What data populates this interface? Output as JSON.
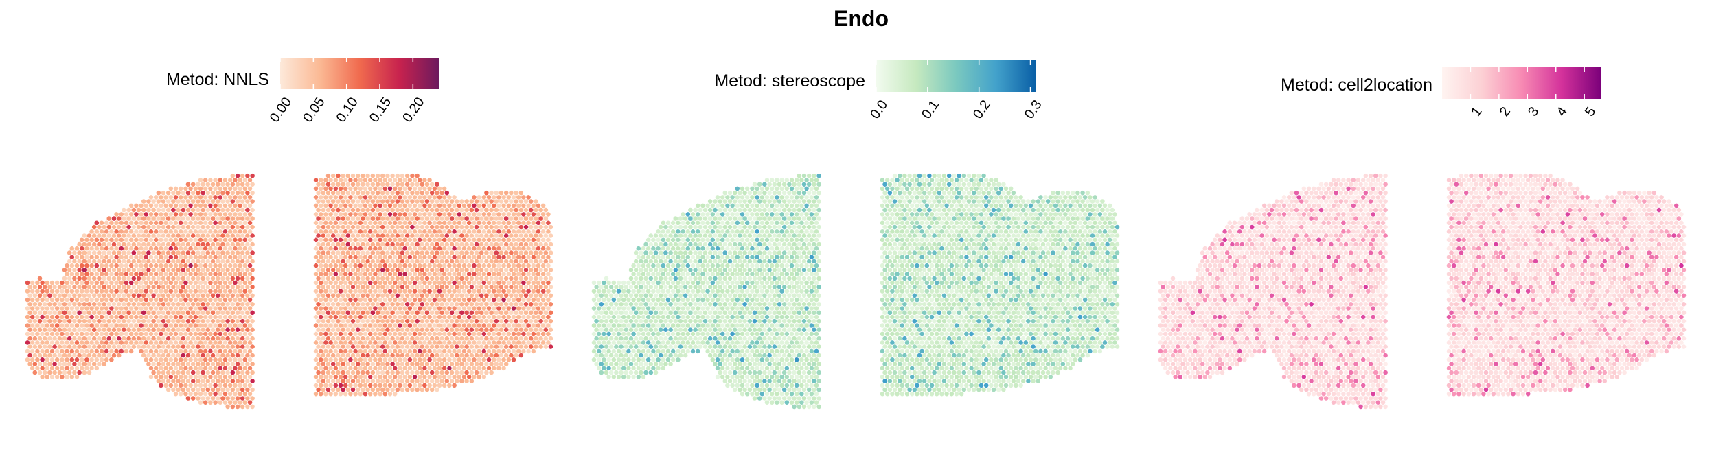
{
  "figure": {
    "title": "Endo"
  },
  "colors": {
    "nnls": [
      "#fde9da",
      "#fbb994",
      "#f06a4e",
      "#c7224e",
      "#6b1a5e"
    ],
    "stereoscope": [
      "#f2fbef",
      "#c6e9bf",
      "#7bc9bf",
      "#43a2cb",
      "#0a5fa6"
    ],
    "cell2location": [
      "#fff4f1",
      "#fcd0d4",
      "#f78ab3",
      "#d4329b",
      "#7a007a"
    ]
  },
  "chart_data": [
    {
      "type": "heatmap",
      "method_label": "Metod: NNLS",
      "colorbar": {
        "min": 0.0,
        "max": 0.24,
        "ticks": [
          0.0,
          0.05,
          0.1,
          0.15,
          0.2
        ],
        "tick_labels": [
          "0.00",
          "0.05",
          "0.10",
          "0.15",
          "0.20"
        ]
      },
      "palette": "nnls",
      "typical_value": 0.045,
      "spread": 0.05
    },
    {
      "type": "heatmap",
      "method_label": "Metod: stereoscope",
      "colorbar": {
        "min": 0.0,
        "max": 0.31,
        "ticks": [
          0.0,
          0.1,
          0.2,
          0.3
        ],
        "tick_labels": [
          "0.0",
          "0.1",
          "0.2",
          "0.3"
        ]
      },
      "palette": "stereoscope",
      "typical_value": 0.05,
      "spread": 0.06
    },
    {
      "type": "heatmap",
      "method_label": "Metod: cell2location",
      "colorbar": {
        "min": 0.0,
        "max": 5.6,
        "ticks": [
          1,
          2,
          3,
          4,
          5
        ],
        "tick_labels": [
          "1",
          "2",
          "3",
          "4",
          "5"
        ]
      },
      "palette": "cell2location",
      "typical_value": 0.7,
      "spread": 0.9
    }
  ]
}
